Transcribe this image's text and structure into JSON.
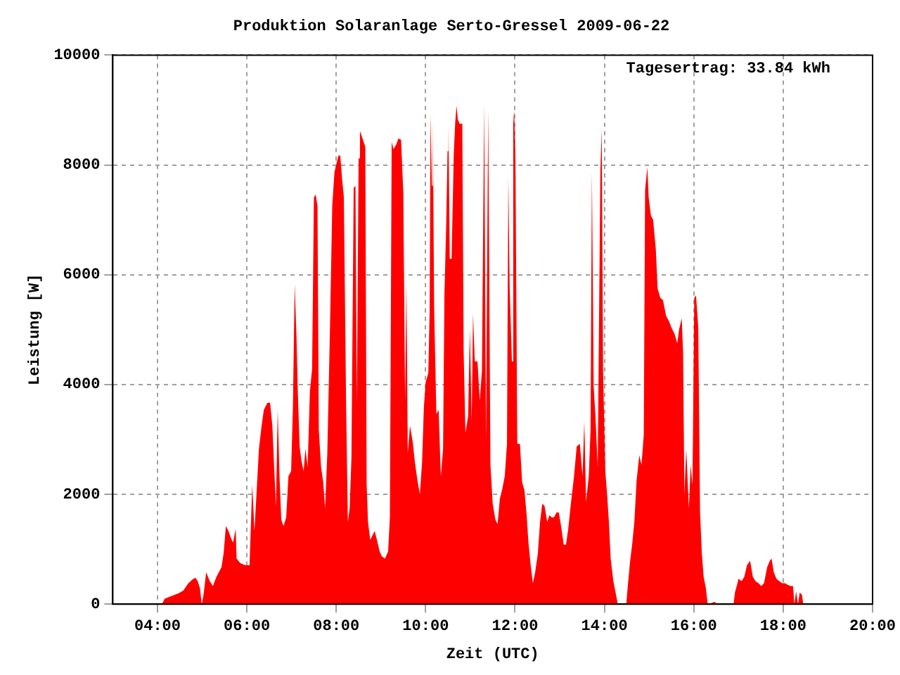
{
  "chart_data": {
    "type": "area",
    "title": "Produktion Solaranlage Serto-Gressel 2009-06-22",
    "xlabel": "Zeit (UTC)",
    "ylabel": "Leistung [W]",
    "annotations": [
      "Tagesertrag: 33.84 kWh"
    ],
    "xlim": [
      3,
      20
    ],
    "xticks": [
      {
        "value": 4,
        "label": "04:00"
      },
      {
        "value": 6,
        "label": "06:00"
      },
      {
        "value": 8,
        "label": "08:00"
      },
      {
        "value": 10,
        "label": "10:00"
      },
      {
        "value": 12,
        "label": "12:00"
      },
      {
        "value": 14,
        "label": "14:00"
      },
      {
        "value": 16,
        "label": "16:00"
      },
      {
        "value": 18,
        "label": "18:00"
      },
      {
        "value": 20,
        "label": "20:00"
      }
    ],
    "ylim": [
      0,
      10000
    ],
    "yticks": [
      0,
      2000,
      4000,
      6000,
      8000,
      10000
    ],
    "grid": true,
    "legend": false,
    "series": [
      {
        "color": "#ff0000",
        "x": [
          4.1,
          4.16,
          4.32,
          4.48,
          4.58,
          4.69,
          4.8,
          4.85,
          4.9,
          4.95,
          4.99,
          5.03,
          5.09,
          5.17,
          5.24,
          5.32,
          5.43,
          5.48,
          5.53,
          5.59,
          5.64,
          5.69,
          5.75,
          5.77,
          5.85,
          5.96,
          6.06,
          6.12,
          6.17,
          6.27,
          6.33,
          6.38,
          6.46,
          6.52,
          6.57,
          6.61,
          6.65,
          6.69,
          6.73,
          6.77,
          6.82,
          6.88,
          6.93,
          6.99,
          7.03,
          7.07,
          7.11,
          7.14,
          7.18,
          7.22,
          7.27,
          7.31,
          7.36,
          7.41,
          7.46,
          7.5,
          7.54,
          7.58,
          7.61,
          7.66,
          7.71,
          7.75,
          7.8,
          7.86,
          7.91,
          7.96,
          8.02,
          8.05,
          8.09,
          8.13,
          8.17,
          8.22,
          8.26,
          8.3,
          8.34,
          8.39,
          8.43,
          8.46,
          8.5,
          8.53,
          8.65,
          8.68,
          8.71,
          8.76,
          8.81,
          8.86,
          8.91,
          8.97,
          9.02,
          9.09,
          9.16,
          9.2,
          9.24,
          9.28,
          9.34,
          9.39,
          9.45,
          9.5,
          9.54,
          9.57,
          9.6,
          9.65,
          9.71,
          9.76,
          9.81,
          9.87,
          9.92,
          9.96,
          10.0,
          10.06,
          10.09,
          10.11,
          10.14,
          10.16,
          10.19,
          10.24,
          10.29,
          10.34,
          10.39,
          10.42,
          10.46,
          10.49,
          10.51,
          10.54,
          10.58,
          10.63,
          10.66,
          10.69,
          10.72,
          10.76,
          10.82,
          10.85,
          10.89,
          10.95,
          10.99,
          11.03,
          11.06,
          11.1,
          11.16,
          11.21,
          11.26,
          11.31,
          11.35,
          11.4,
          11.45,
          11.5,
          11.56,
          11.61,
          11.66,
          11.71,
          11.77,
          11.82,
          11.85,
          11.88,
          11.93,
          11.96,
          11.98,
          12.01,
          12.05,
          12.11,
          12.16,
          12.21,
          12.26,
          12.3,
          12.35,
          12.4,
          12.45,
          12.51,
          12.56,
          12.61,
          12.66,
          12.72,
          12.77,
          12.82,
          12.87,
          12.93,
          12.98,
          13.03,
          13.09,
          13.14,
          13.19,
          13.25,
          13.32,
          13.38,
          13.45,
          13.51,
          13.55,
          13.59,
          13.65,
          13.69,
          13.72,
          13.76,
          13.8,
          13.85,
          13.91,
          13.94,
          13.97,
          14.02,
          14.06,
          14.1,
          14.14,
          14.2,
          14.25,
          14.3,
          14.49,
          14.51,
          14.57,
          14.62,
          14.67,
          14.72,
          14.78,
          14.83,
          14.88,
          14.91,
          14.96,
          14.99,
          15.04,
          15.09,
          15.15,
          15.19,
          15.25,
          15.31,
          15.38,
          15.44,
          15.5,
          15.57,
          15.63,
          15.67,
          15.73,
          15.76,
          15.79,
          15.83,
          15.89,
          15.93,
          15.97,
          16.01,
          16.05,
          16.1,
          16.14,
          16.18,
          16.22,
          16.27,
          16.31,
          16.47,
          16.52,
          16.89,
          16.92,
          16.96,
          17.0,
          17.07,
          17.13,
          17.19,
          17.26,
          17.32,
          17.38,
          17.45,
          17.51,
          17.57,
          17.64,
          17.7,
          17.74,
          17.79,
          17.85,
          17.91,
          17.98,
          18.04,
          18.1,
          18.17,
          18.22,
          18.25,
          18.29,
          18.33,
          18.37,
          18.42,
          18.45
        ],
        "values": [
          0,
          100,
          150,
          200,
          250,
          380,
          460,
          480,
          420,
          290,
          0,
          170,
          580,
          420,
          330,
          500,
          670,
          920,
          1420,
          1330,
          1210,
          1120,
          1370,
          830,
          750,
          710,
          710,
          2170,
          1330,
          2830,
          3250,
          3540,
          3670,
          3670,
          3250,
          2500,
          1790,
          3540,
          2330,
          1540,
          1420,
          1580,
          2330,
          2420,
          3580,
          5830,
          4870,
          3870,
          2870,
          2620,
          2420,
          2830,
          2500,
          3870,
          4290,
          7410,
          7460,
          7250,
          3170,
          2500,
          2210,
          1750,
          2750,
          5040,
          7250,
          7870,
          8080,
          8170,
          8170,
          7750,
          7410,
          3670,
          1500,
          1750,
          2670,
          7580,
          7620,
          3670,
          8120,
          8620,
          8330,
          2170,
          1500,
          1170,
          1250,
          1330,
          1170,
          960,
          870,
          830,
          960,
          1580,
          8420,
          8290,
          8370,
          8480,
          8460,
          7500,
          3710,
          5830,
          2750,
          3250,
          2960,
          2580,
          2290,
          2000,
          2580,
          3580,
          4040,
          4210,
          5370,
          8920,
          7620,
          8790,
          5410,
          3460,
          3540,
          2330,
          2830,
          5620,
          6910,
          8250,
          8750,
          6290,
          6290,
          8210,
          8750,
          9080,
          8830,
          8750,
          8750,
          4620,
          3120,
          3420,
          5000,
          3330,
          5290,
          4420,
          4420,
          3710,
          4250,
          9100,
          3000,
          9000,
          2540,
          1830,
          1540,
          1460,
          1920,
          2080,
          2330,
          2920,
          7790,
          5750,
          4420,
          8750,
          9000,
          8080,
          2920,
          2920,
          2210,
          2080,
          1620,
          1120,
          710,
          380,
          580,
          920,
          1500,
          1830,
          1790,
          1500,
          1620,
          1580,
          1580,
          1670,
          1670,
          1420,
          1080,
          1080,
          1370,
          1830,
          2330,
          2870,
          2920,
          2330,
          3330,
          1870,
          2330,
          3170,
          7870,
          3960,
          3420,
          2500,
          7910,
          8650,
          4250,
          2420,
          2000,
          1500,
          830,
          420,
          210,
          0,
          0,
          210,
          750,
          1080,
          1500,
          2250,
          2710,
          2540,
          3080,
          7540,
          7960,
          7410,
          7080,
          7000,
          6460,
          5750,
          5580,
          5540,
          5250,
          5160,
          5040,
          4920,
          4750,
          5000,
          5210,
          4580,
          2000,
          2830,
          1750,
          2540,
          2170,
          5580,
          5620,
          5040,
          1670,
          920,
          500,
          290,
          0,
          40,
          0,
          0,
          210,
          330,
          460,
          420,
          500,
          710,
          790,
          500,
          420,
          380,
          330,
          380,
          670,
          790,
          830,
          580,
          460,
          420,
          380,
          380,
          350,
          330,
          330,
          0,
          230,
          0,
          210,
          170,
          0
        ]
      }
    ]
  }
}
